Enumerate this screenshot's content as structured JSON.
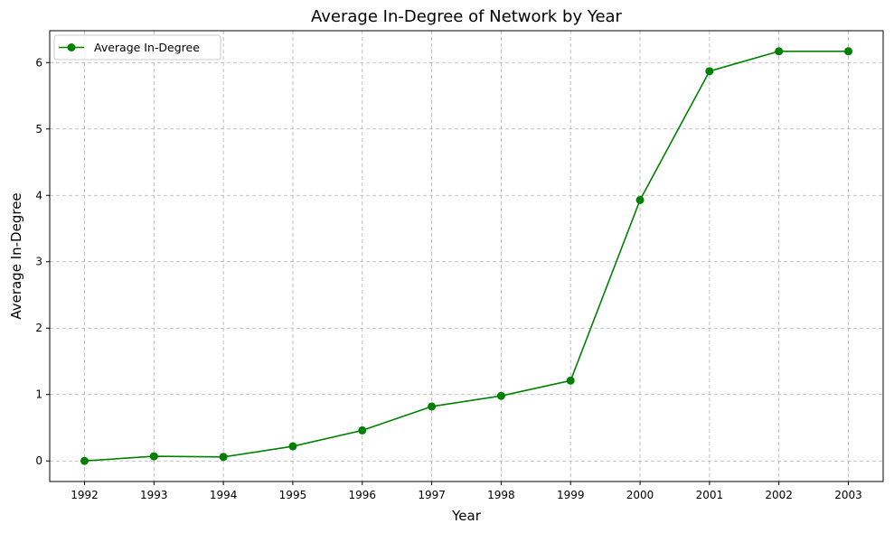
{
  "chart_data": {
    "type": "line",
    "title": "Average In-Degree of Network by Year",
    "xlabel": "Year",
    "ylabel": "Average In-Degree",
    "x": [
      "1992",
      "1993",
      "1994",
      "1995",
      "1996",
      "1997",
      "1998",
      "1999",
      "2000",
      "2001",
      "2002",
      "2003"
    ],
    "series": [
      {
        "name": "Average In-Degree",
        "color": "#008000",
        "marker": "circle",
        "values": [
          0.0,
          0.07,
          0.06,
          0.22,
          0.46,
          0.82,
          0.98,
          1.21,
          3.93,
          5.87,
          6.17,
          6.17
        ]
      }
    ],
    "yticks": [
      "0",
      "1",
      "2",
      "3",
      "4",
      "5",
      "6"
    ],
    "ylim": [
      -0.31,
      6.48
    ],
    "grid": true,
    "legend_position": "upper-left"
  }
}
